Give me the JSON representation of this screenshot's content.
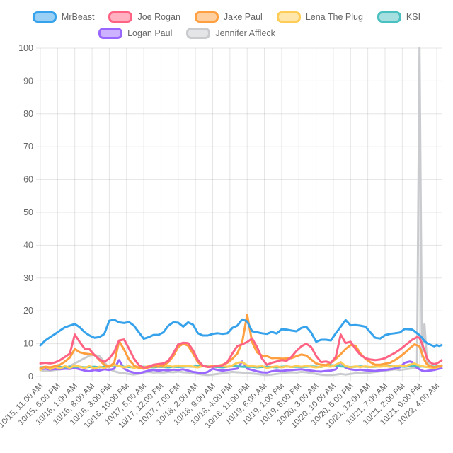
{
  "chart_data": {
    "type": "line",
    "title": "",
    "legend_position": "top",
    "grid": true,
    "background": "#FFFFFF",
    "grid_color": "rgba(0,0,0,0.1)",
    "tick_text_color": "#666666",
    "legend_text_color": "#666666",
    "legend_fill_alpha": 0.5,
    "y_axis": {
      "min": 0,
      "max": 100,
      "ticks": [
        0,
        10,
        20,
        30,
        40,
        50,
        60,
        70,
        80,
        90,
        100
      ]
    },
    "x_axis": {
      "unit": "hour",
      "domain_hours": [
        0,
        163
      ],
      "tick_hours": [
        0,
        7,
        14,
        21,
        28,
        35,
        42,
        49,
        56,
        63,
        70,
        77,
        84,
        91,
        98,
        105,
        112,
        119,
        126,
        133,
        140,
        147,
        154,
        161
      ],
      "tick_labels": [
        "10/15, 11:00 AM",
        "10/15, 6:00 PM",
        "10/16, 1:00 AM",
        "10/16, 8:00 AM",
        "10/16, 3:00 PM",
        "10/16, 10:00 PM",
        "10/17, 5:00 AM",
        "10/17, 12:00 PM",
        "10/17, 7:00 PM",
        "10/18, 2:00 AM",
        "10/18, 9:00 AM",
        "10/18, 4:00 PM",
        "10/18, 11:00 PM",
        "10/19, 6:00 AM",
        "10/19, 1:00 PM",
        "10/19, 8:00 PM",
        "10/20, 3:00 AM",
        "10/20, 10:00 AM",
        "10/20, 5:00 PM",
        "10/21, 12:00 AM",
        "10/21, 7:00 AM",
        "10/21, 2:00 PM",
        "10/21, 9:00 PM",
        "10/22, 4:00 AM"
      ]
    },
    "x_hours": [
      0,
      2,
      4,
      6,
      8,
      10,
      12,
      14,
      16,
      18,
      20,
      22,
      24,
      26,
      28,
      30,
      32,
      34,
      36,
      38,
      40,
      42,
      44,
      46,
      48,
      50,
      52,
      54,
      56,
      58,
      60,
      62,
      64,
      66,
      68,
      70,
      72,
      74,
      76,
      78,
      80,
      82,
      84,
      86,
      88,
      90,
      92,
      94,
      96,
      98,
      100,
      102,
      104,
      106,
      108,
      110,
      112,
      114,
      116,
      118,
      120,
      122,
      124,
      126,
      128,
      130,
      132,
      134,
      136,
      138,
      140,
      142,
      144,
      146,
      148,
      150,
      151,
      152,
      153,
      154,
      155,
      156,
      157,
      158,
      159,
      160,
      161,
      162,
      163
    ],
    "series": [
      {
        "name": "MrBeast",
        "color": "#36A2EB",
        "legend_row": 0,
        "values": [
          9.5,
          11,
          12,
          13,
          14,
          15,
          15.5,
          16,
          15,
          13.5,
          12.5,
          11.8,
          12,
          13,
          17,
          17.3,
          16.5,
          16.3,
          16.6,
          15.5,
          13.5,
          11.5,
          12,
          12.7,
          12.7,
          13.5,
          15.5,
          16.5,
          16.4,
          15.2,
          16.5,
          15.8,
          13.2,
          12.5,
          12.5,
          13,
          13.2,
          13,
          13.2,
          14.8,
          15.5,
          17.4,
          16.8,
          13.8,
          13.5,
          13.2,
          13,
          13.6,
          13.1,
          14.4,
          14.3,
          14,
          13.8,
          14.8,
          15.2,
          13.4,
          10.6,
          11.2,
          11.2,
          11,
          13.2,
          15.2,
          17.2,
          15.6,
          15.7,
          15.5,
          15.2,
          13.5,
          11.8,
          11.6,
          12.6,
          13,
          13.2,
          13.4,
          14.5,
          14.4,
          14.3,
          13.8,
          13.2,
          12.6,
          11.8,
          10.8,
          10.2,
          9.8,
          9.5,
          9.2,
          9.6,
          9.3,
          9.6
        ]
      },
      {
        "name": "Joe Rogan",
        "color": "#FF6384",
        "legend_row": 0,
        "values": [
          4,
          4.2,
          4,
          4.3,
          5,
          6,
          7,
          12.8,
          10.5,
          8.5,
          8.3,
          6.5,
          5.2,
          4.5,
          5.5,
          7.5,
          11,
          11.3,
          8.5,
          5.5,
          3.5,
          2.7,
          3,
          3.6,
          3.8,
          4,
          4.8,
          7,
          9.8,
          10.3,
          10.2,
          8,
          5,
          3.3,
          2.9,
          3,
          3.2,
          3.4,
          4.5,
          7,
          9.3,
          9.8,
          10.5,
          11.6,
          9,
          5.5,
          3.6,
          4.2,
          4.6,
          5,
          4.8,
          6,
          7.8,
          9.2,
          10,
          9,
          6.3,
          4.4,
          4.6,
          4.2,
          6,
          12.8,
          10.2,
          10.6,
          8.4,
          6.6,
          5.6,
          5.2,
          5,
          5.2,
          5.6,
          6.4,
          7.2,
          8.2,
          9.4,
          10.6,
          11.2,
          11.6,
          12,
          11.8,
          10,
          8,
          5.6,
          4.6,
          4,
          3.8,
          4,
          4.4,
          5
        ]
      },
      {
        "name": "Jake Paul",
        "color": "#FF9F40",
        "legend_row": 0,
        "values": [
          2.6,
          3,
          2.8,
          3.2,
          3.6,
          4.6,
          5.8,
          8.4,
          7.4,
          7,
          6.8,
          6.6,
          5,
          3.6,
          3,
          4.2,
          10.8,
          8.2,
          5.2,
          3.4,
          2.6,
          2.4,
          2.8,
          3.2,
          3,
          3.4,
          4.4,
          6.2,
          9,
          10,
          9.4,
          7,
          4.4,
          3.2,
          2.9,
          3.1,
          3.3,
          3.6,
          4.2,
          5.4,
          7,
          10.5,
          18.8,
          10.5,
          7.4,
          6.4,
          6.2,
          5.6,
          5.7,
          5.4,
          5.5,
          5.6,
          6.2,
          6.7,
          6.4,
          5.2,
          4,
          3.6,
          3.5,
          4.2,
          5.4,
          6.8,
          8.4,
          9.6,
          9.4,
          7,
          5.4,
          4.4,
          3.6,
          3.6,
          3.9,
          4.2,
          5,
          6,
          7.2,
          8.6,
          9.2,
          9.8,
          9.5,
          9.2,
          7,
          5,
          3.8,
          3.2,
          3,
          2.8,
          3,
          3.2,
          3.4
        ]
      },
      {
        "name": "Lena The Plug",
        "color": "#FFCD56",
        "legend_row": 0,
        "values": [
          2,
          3,
          2.2,
          3,
          2.4,
          3.2,
          2.6,
          3.4,
          3,
          2.6,
          3.2,
          2.4,
          3,
          2.6,
          3.2,
          3.6,
          3.2,
          2.8,
          3.2,
          2.6,
          3,
          2.8,
          3.2,
          3,
          3.3,
          3,
          3.2,
          3,
          3.4,
          3.1,
          3.3,
          3,
          2.8,
          3.2,
          3,
          3.3,
          3.1,
          3.2,
          3,
          3.4,
          4.2,
          4.4,
          3.4,
          3.2,
          3,
          3.2,
          2.6,
          2.9,
          3.1,
          2.8,
          3.1,
          2.9,
          3.2,
          3,
          3.2,
          3,
          2.8,
          3,
          3.2,
          3,
          3.6,
          4.4,
          3.2,
          2.8,
          3.1,
          2.9,
          3.1,
          2.9,
          3.1,
          3,
          3.2,
          3,
          3.2,
          3.4,
          3.2,
          3.6,
          3.8,
          4,
          3.6,
          3.4,
          3.2,
          3,
          2.9,
          2.8,
          2.7,
          2.6,
          2.8,
          3,
          3.1
        ]
      },
      {
        "name": "KSI",
        "color": "#4BC0C0",
        "legend_row": 0,
        "values": [
          2.8,
          2.9,
          2.8,
          3,
          2.9,
          2.8,
          3,
          2.9,
          3,
          2.8,
          2.9,
          3,
          2.8,
          3,
          3.2,
          3.4,
          3.2,
          3,
          2.9,
          2.8,
          2.9,
          3,
          2.9,
          2.8,
          3,
          2.9,
          2.8,
          3,
          2.9,
          3,
          3.1,
          3,
          3.3,
          3.2,
          3.1,
          3,
          2.9,
          2.8,
          3,
          3.2,
          3.1,
          3,
          2.9,
          3,
          2.8,
          2.9,
          3,
          2.9,
          2.8,
          3,
          3.1,
          2.9,
          3,
          2.9,
          3,
          3.1,
          3,
          2.9,
          3.3,
          3.5,
          3.3,
          3.1,
          3,
          2.9,
          3,
          3.1,
          3,
          2.9,
          3,
          3.2,
          3.4,
          3.2,
          3,
          3.1,
          3,
          3.2,
          3.1,
          3.2,
          3.1,
          3,
          3.1,
          3,
          2.9,
          3,
          3.1,
          3,
          3.1,
          3.2,
          3.2
        ]
      },
      {
        "name": "Logan Paul",
        "color": "#9966FF",
        "legend_row": 1,
        "values": [
          2.2,
          2.4,
          2.1,
          2.3,
          2.2,
          2.4,
          2.3,
          2.6,
          2.2,
          1.8,
          1.6,
          2,
          1.8,
          2.2,
          2,
          2.4,
          5,
          2.4,
          1.6,
          1.2,
          1,
          1.4,
          1.8,
          2,
          1.8,
          2,
          1.9,
          2.1,
          2,
          2.2,
          1.8,
          1.4,
          1.2,
          1,
          1.4,
          2.4,
          2,
          1.8,
          2,
          2.2,
          2.4,
          4.6,
          2.4,
          2,
          1.6,
          1.3,
          1.2,
          1.6,
          1.8,
          1.7,
          1.9,
          2,
          2.1,
          2.2,
          2,
          1.8,
          1.6,
          1.5,
          1.7,
          1.8,
          2.2,
          4.4,
          2.6,
          2.2,
          2,
          2.1,
          1.9,
          1.8,
          1.7,
          1.9,
          2,
          2.2,
          2.4,
          2.8,
          4.2,
          4.6,
          4.4,
          3.2,
          2.6,
          2.2,
          1.8,
          1.6,
          1.7,
          1.8,
          1.9,
          2,
          2.2,
          2.4,
          2.5
        ]
      },
      {
        "name": "Jennifer Affleck",
        "color": "#C9CBCF",
        "legend_row": 1,
        "values": [
          2,
          1.6,
          1.8,
          2,
          2.2,
          2.6,
          3.2,
          4,
          4.8,
          5.6,
          6.4,
          6.6,
          6.2,
          4.4,
          2.4,
          1.6,
          1.2,
          1,
          0.8,
          0.6,
          0.8,
          1.2,
          1.4,
          1.2,
          1.3,
          1.2,
          1.4,
          1.3,
          1.5,
          1.3,
          1.2,
          1,
          0.8,
          0.6,
          0.5,
          0.6,
          0.8,
          1,
          1.2,
          1.4,
          1.3,
          1.2,
          1,
          0.9,
          0.8,
          0.6,
          0.5,
          0.6,
          0.8,
          1,
          1.2,
          1.3,
          1.2,
          1.4,
          1.3,
          1.1,
          0.8,
          0.6,
          0.5,
          0.5,
          0.6,
          0.8,
          0.6,
          0.8,
          1,
          1.2,
          1,
          1.2,
          1.4,
          1.6,
          1.8,
          2,
          2.2,
          2,
          2.2,
          2.4,
          2.5,
          2.6,
          3,
          100,
          6,
          16,
          5,
          3.6,
          3.2,
          2.8,
          2.6,
          2.8,
          3
        ]
      }
    ]
  }
}
